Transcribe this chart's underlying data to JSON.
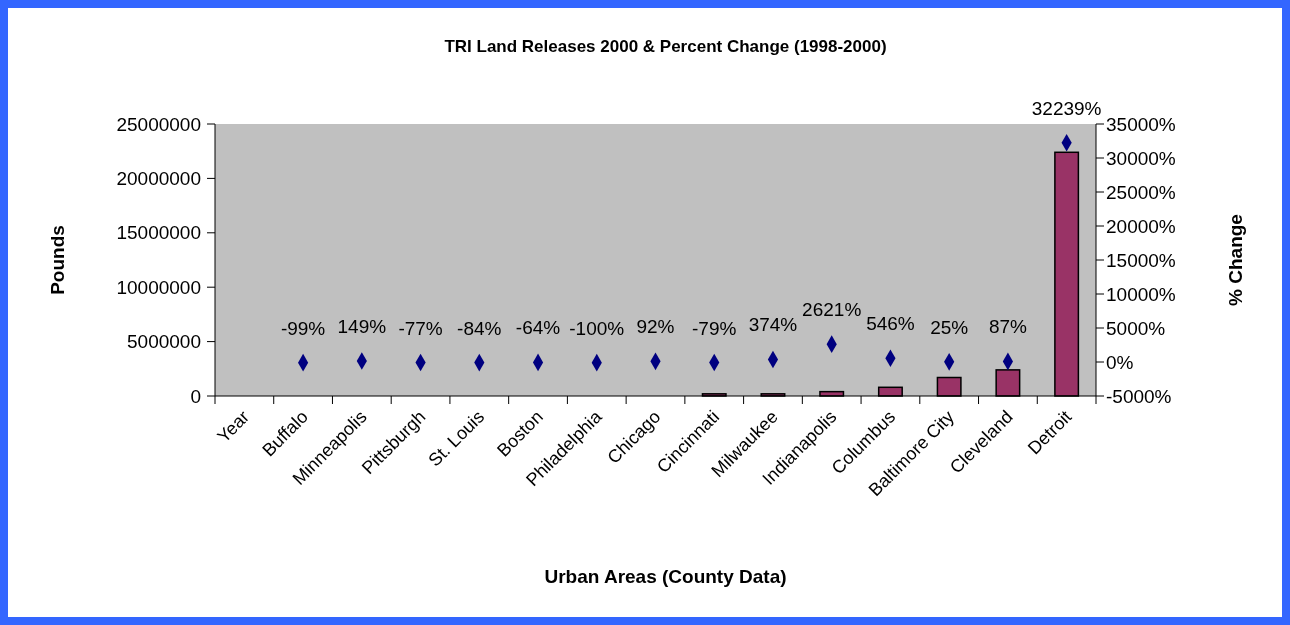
{
  "chart_data": {
    "type": "bar",
    "title": "TRI Land Releases 2000 & Percent Change (1998-2000)",
    "xlabel": "Urban Areas (County Data)",
    "ylabel": "Pounds",
    "y2label": "% Change",
    "categories": [
      "Year",
      "Buffalo",
      "Minneapolis",
      "Pittsburgh",
      "St. Louis",
      "Boston",
      "Philadelphia",
      "Chicago",
      "Cincinnati",
      "Milwaukee",
      "Indianapolis",
      "Columbus",
      "Baltimore City",
      "Cleveland",
      "Detroit"
    ],
    "series": [
      {
        "color": "#993366",
        "values": [
          null,
          0,
          0,
          0,
          0,
          0,
          0,
          0,
          200000,
          200000,
          400000,
          800000,
          1700000,
          2400000,
          22400000
        ]
      },
      {
        "type": "scatter",
        "axis": "y2",
        "marker": "diamond",
        "color": "#000080",
        "values": [
          null,
          -99,
          149,
          -77,
          -84,
          -64,
          -100,
          92,
          -79,
          374,
          2621,
          546,
          25,
          87,
          32239
        ],
        "value_labels": [
          null,
          "-99%",
          "149%",
          "-77%",
          "-84%",
          "-64%",
          "-100%",
          "92%",
          "-79%",
          "374%",
          "2621%",
          "546%",
          "25%",
          "87%",
          "32239%"
        ]
      }
    ],
    "ylim": [
      0,
      25000000
    ],
    "yticks": [
      0,
      5000000,
      10000000,
      15000000,
      20000000,
      25000000
    ],
    "y2lim": [
      -5000,
      35000
    ],
    "y2ticks": [
      {
        "value": -5000,
        "label": "-5000%"
      },
      {
        "value": 0,
        "label": "0%"
      },
      {
        "value": 5000,
        "label": "5000%"
      },
      {
        "value": 10000,
        "label": "10000%"
      },
      {
        "value": 15000,
        "label": "15000%"
      },
      {
        "value": 20000,
        "label": "20000%"
      },
      {
        "value": 25000,
        "label": "25000%"
      },
      {
        "value": 30000,
        "label": "30000%"
      },
      {
        "value": 35000,
        "label": "35000%"
      }
    ],
    "grid": false
  }
}
